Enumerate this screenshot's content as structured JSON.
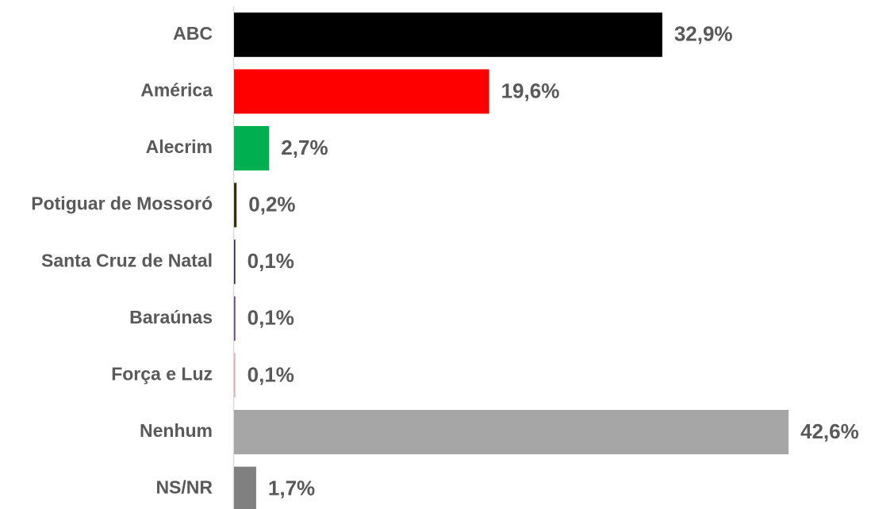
{
  "chart_data": {
    "type": "bar",
    "orientation": "horizontal",
    "categories": [
      "ABC",
      "América",
      "Alecrim",
      "Potiguar de Mossoró",
      "Santa Cruz de Natal",
      "Baraúnas",
      "Força e Luz",
      "Nenhum",
      "NS/NR"
    ],
    "values": [
      32.9,
      19.6,
      2.7,
      0.2,
      0.1,
      0.1,
      0.1,
      42.6,
      1.7
    ],
    "value_labels": [
      "32,9%",
      "19,6%",
      "2,7%",
      "0,2%",
      "0,1%",
      "0,1%",
      "0,1%",
      "42,6%",
      "1,7%"
    ],
    "colors": [
      "#000000",
      "#ff0000",
      "#00b050",
      "#3a3300",
      "#1f2a6e",
      "#7030a0",
      "#f4a6b4",
      "#a6a6a6",
      "#808080"
    ]
  }
}
